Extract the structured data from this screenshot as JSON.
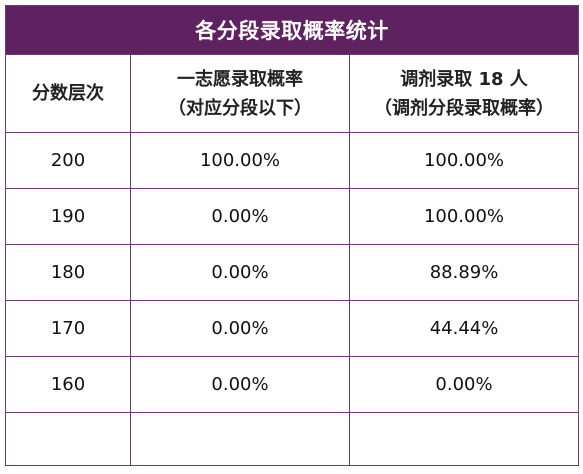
{
  "table": {
    "title": "各分段录取概率统计",
    "headers": {
      "score": "分数层次",
      "first_choice_line1": "一志愿录取概率",
      "first_choice_line2": "（对应分段以下）",
      "adjust_line1": "调剂录取 18 人",
      "adjust_line2": "（调剂分段录取概率）"
    },
    "rows": [
      {
        "score": "200",
        "first_choice": "100.00%",
        "adjust": "100.00%"
      },
      {
        "score": "190",
        "first_choice": "0.00%",
        "adjust": "100.00%"
      },
      {
        "score": "180",
        "first_choice": "0.00%",
        "adjust": "88.89%"
      },
      {
        "score": "170",
        "first_choice": "0.00%",
        "adjust": "44.44%"
      },
      {
        "score": "160",
        "first_choice": "0.00%",
        "adjust": "0.00%"
      },
      {
        "score": "",
        "first_choice": "",
        "adjust": ""
      }
    ]
  },
  "colors": {
    "title_background": "#5f2260",
    "border": "#6d3b74",
    "title_text": "#ffffff"
  }
}
